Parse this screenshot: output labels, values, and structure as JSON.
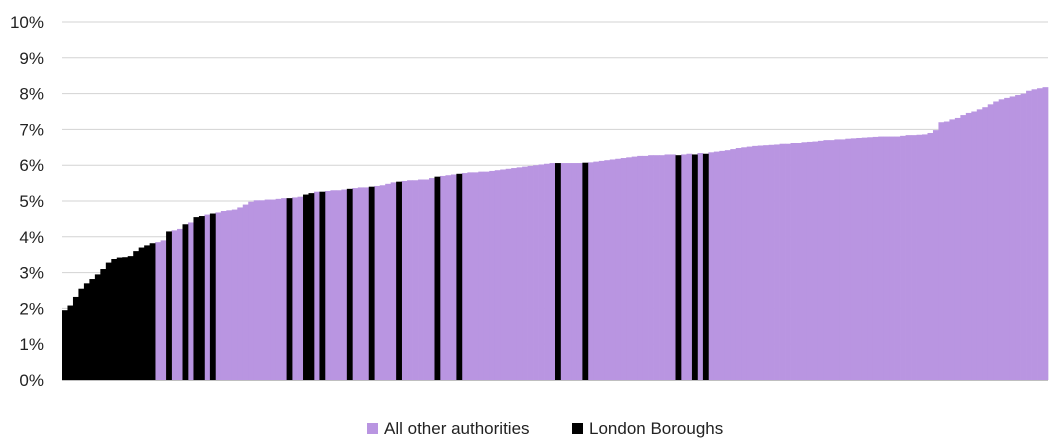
{
  "chart_data": {
    "type": "bar",
    "title": "",
    "xlabel": "",
    "ylabel": "",
    "ylim": [
      0,
      10
    ],
    "y_ticks": [
      "0%",
      "1%",
      "2%",
      "3%",
      "4%",
      "5%",
      "6%",
      "7%",
      "8%",
      "9%",
      "10%"
    ],
    "grid": true,
    "legend_position": "bottom",
    "colors": {
      "All other authorities": "#b995e1",
      "London Boroughs": "#000000"
    },
    "series": [
      {
        "name": "All other authorities",
        "values": [
          null,
          null,
          null,
          null,
          null,
          null,
          null,
          null,
          null,
          null,
          null,
          null,
          null,
          null,
          null,
          null,
          null,
          3.85,
          3.9,
          null,
          4.18,
          4.22,
          null,
          4.4,
          null,
          null,
          4.62,
          null,
          4.68,
          4.72,
          4.74,
          4.76,
          4.82,
          4.9,
          4.98,
          5.02,
          5.02,
          5.04,
          5.04,
          5.06,
          5.08,
          null,
          5.1,
          5.12,
          null,
          null,
          5.26,
          null,
          5.28,
          5.3,
          5.3,
          5.32,
          null,
          5.36,
          5.38,
          5.38,
          null,
          5.42,
          5.44,
          5.48,
          5.52,
          null,
          5.56,
          5.58,
          5.58,
          5.6,
          5.6,
          5.64,
          null,
          5.7,
          5.72,
          5.74,
          null,
          5.78,
          5.8,
          5.8,
          5.82,
          5.82,
          5.84,
          5.86,
          5.88,
          5.9,
          5.92,
          5.94,
          5.96,
          5.98,
          6.0,
          6.02,
          6.04,
          6.06,
          null,
          6.06,
          6.06,
          6.06,
          6.06,
          null,
          6.08,
          6.1,
          6.12,
          6.14,
          6.16,
          6.18,
          6.2,
          6.22,
          6.24,
          6.26,
          6.26,
          6.28,
          6.28,
          6.28,
          6.3,
          6.3,
          null,
          6.3,
          6.32,
          null,
          6.34,
          null,
          6.36,
          6.38,
          6.4,
          6.42,
          6.45,
          6.48,
          6.5,
          6.52,
          6.54,
          6.55,
          6.56,
          6.57,
          6.58,
          6.6,
          6.6,
          6.62,
          6.62,
          6.64,
          6.65,
          6.66,
          6.68,
          6.7,
          6.7,
          6.72,
          6.72,
          6.74,
          6.75,
          6.76,
          6.77,
          6.78,
          6.79,
          6.8,
          6.8,
          6.8,
          6.8,
          6.82,
          6.84,
          6.84,
          6.85,
          6.86,
          6.9,
          6.98,
          7.2,
          7.22,
          7.28,
          7.32,
          7.4,
          7.46,
          7.5,
          7.56,
          7.62,
          7.7,
          7.78,
          7.84,
          7.88,
          7.92,
          7.96,
          8.0,
          8.08,
          8.12,
          8.15,
          8.18
        ]
      },
      {
        "name": "London Boroughs",
        "values": [
          1.95,
          2.08,
          2.32,
          2.55,
          2.7,
          2.82,
          2.95,
          3.1,
          3.28,
          3.38,
          3.42,
          3.43,
          3.46,
          3.6,
          3.7,
          3.76,
          3.82,
          null,
          null,
          4.15,
          null,
          null,
          4.35,
          null,
          4.55,
          4.58,
          null,
          4.65,
          null,
          null,
          null,
          null,
          null,
          null,
          null,
          null,
          null,
          null,
          null,
          null,
          null,
          5.08,
          null,
          null,
          5.18,
          5.22,
          null,
          5.26,
          null,
          null,
          null,
          null,
          5.34,
          null,
          null,
          null,
          5.4,
          null,
          null,
          null,
          null,
          5.54,
          null,
          null,
          null,
          null,
          null,
          null,
          5.68,
          null,
          null,
          null,
          5.76,
          null,
          null,
          null,
          null,
          null,
          null,
          null,
          null,
          null,
          null,
          null,
          null,
          null,
          null,
          null,
          null,
          null,
          6.06,
          null,
          null,
          null,
          null,
          6.07,
          null,
          null,
          null,
          null,
          null,
          null,
          null,
          null,
          null,
          null,
          null,
          null,
          null,
          null,
          null,
          null,
          6.28,
          null,
          null,
          6.3,
          null,
          6.32,
          null,
          null,
          null,
          null,
          null,
          null,
          null,
          null,
          null,
          null,
          null,
          null,
          null,
          null,
          null,
          null,
          null,
          null,
          null,
          null,
          null,
          null,
          null,
          null,
          null,
          null,
          null,
          null,
          null,
          null,
          null,
          null,
          null,
          null,
          null,
          null,
          null,
          null,
          null,
          null,
          null,
          null,
          null,
          null,
          null,
          null,
          null,
          null,
          null,
          null,
          null,
          null,
          null,
          null,
          null,
          null,
          null,
          null,
          null,
          null,
          null,
          null
        ]
      }
    ],
    "legend": [
      {
        "label": "All other authorities",
        "color": "#b995e1"
      },
      {
        "label": "London Boroughs",
        "color": "#000000"
      }
    ]
  }
}
